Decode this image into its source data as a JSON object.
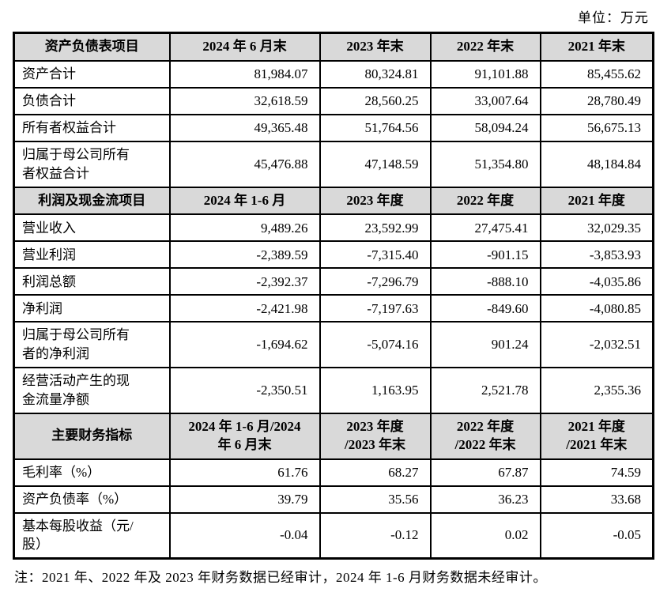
{
  "unit_label": "单位：万元",
  "note": "注：2021 年、2022 年及 2023 年财务数据已经审计，2024 年 1-6 月财务数据未经审计。",
  "colors": {
    "header_bg": "#d9d9d9",
    "border": "#000000",
    "text": "#000000",
    "background": "#ffffff"
  },
  "table": {
    "sections": [
      {
        "header": [
          "资产负债表项目",
          "2024 年 6 月末",
          "2023 年末",
          "2022 年末",
          "2021 年末"
        ],
        "rows": [
          {
            "label": "资产合计",
            "values": [
              "81,984.07",
              "80,324.81",
              "91,101.88",
              "85,455.62"
            ]
          },
          {
            "label": "负债合计",
            "values": [
              "32,618.59",
              "28,560.25",
              "33,007.64",
              "28,780.49"
            ]
          },
          {
            "label": "所有者权益合计",
            "values": [
              "49,365.48",
              "51,764.56",
              "58,094.24",
              "56,675.13"
            ]
          },
          {
            "label": "归属于母公司所有\n者权益合计",
            "values": [
              "45,476.88",
              "47,148.59",
              "51,354.80",
              "48,184.84"
            ]
          }
        ]
      },
      {
        "header": [
          "利润及现金流项目",
          "2024 年 1-6 月",
          "2023 年度",
          "2022 年度",
          "2021 年度"
        ],
        "rows": [
          {
            "label": "营业收入",
            "values": [
              "9,489.26",
              "23,592.99",
              "27,475.41",
              "32,029.35"
            ]
          },
          {
            "label": "营业利润",
            "values": [
              "-2,389.59",
              "-7,315.40",
              "-901.15",
              "-3,853.93"
            ]
          },
          {
            "label": "利润总额",
            "values": [
              "-2,392.37",
              "-7,296.79",
              "-888.10",
              "-4,035.86"
            ]
          },
          {
            "label": "净利润",
            "values": [
              "-2,421.98",
              "-7,197.63",
              "-849.60",
              "-4,080.85"
            ]
          },
          {
            "label": "归属于母公司所有\n者的净利润",
            "values": [
              "-1,694.62",
              "-5,074.16",
              "901.24",
              "-2,032.51"
            ]
          },
          {
            "label": "经营活动产生的现\n金流量净额",
            "values": [
              "-2,350.51",
              "1,163.95",
              "2,521.78",
              "2,355.36"
            ]
          }
        ]
      },
      {
        "header": [
          "主要财务指标",
          "2024 年 1-6 月/2024\n年 6 月末",
          "2023 年度\n/2023 年末",
          "2022 年度\n/2022 年末",
          "2021 年度\n/2021 年末"
        ],
        "rows": [
          {
            "label": "毛利率（%）",
            "values": [
              "61.76",
              "68.27",
              "67.87",
              "74.59"
            ]
          },
          {
            "label": "资产负债率（%）",
            "values": [
              "39.79",
              "35.56",
              "36.23",
              "33.68"
            ]
          },
          {
            "label": "基本每股收益（元/\n股）",
            "values": [
              "-0.04",
              "-0.12",
              "0.02",
              "-0.05"
            ]
          }
        ]
      }
    ]
  }
}
